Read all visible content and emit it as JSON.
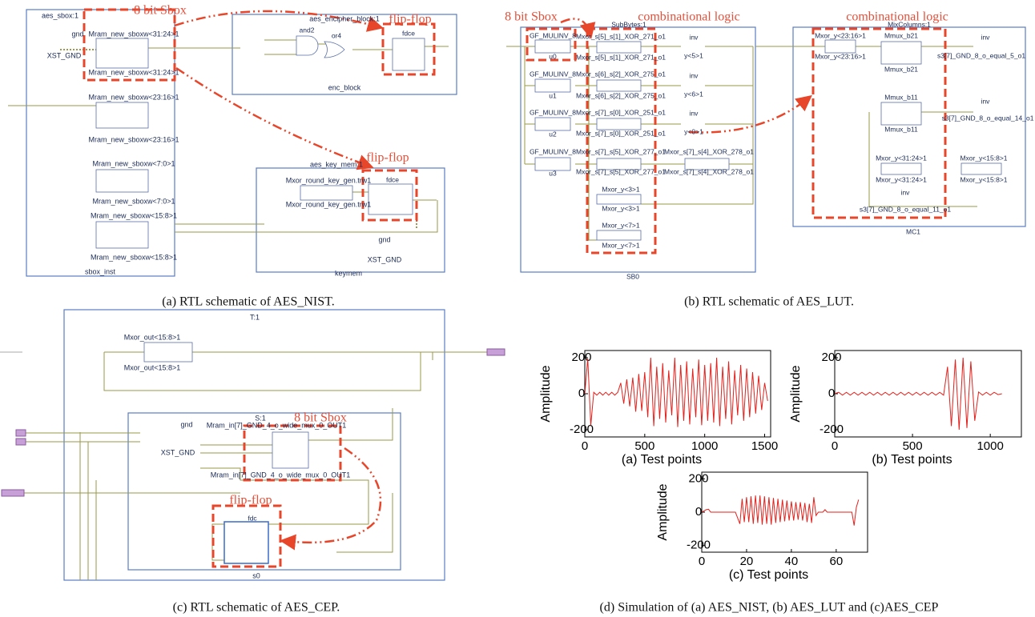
{
  "schematic_a": {
    "texts": [
      "aes_sbox:1",
      "8 bit Sbox",
      "gnd",
      "XST_GND",
      "Mram_new_sboxw<31:24>1",
      "Mram_new_sboxw<31:24>1",
      "Mram_new_sboxw<23:16>1",
      "Mram_new_sboxw<23:16>1",
      "Mram_new_sboxw<7:0>1",
      "Mram_new_sboxw<7:0>1",
      "Mram_new_sboxw<15:8>1",
      "Mram_new_sboxw<15:8>1",
      "sbox_inst",
      "aes_encipher_block:1",
      "and2",
      "or4",
      "flip-flop",
      "fdce",
      "enc_block",
      "aes_key_mem:1",
      "Mxor_round_key_gen.trw1",
      "Mxor_round_key_gen.trw1",
      "flip-flop",
      "fdce",
      "gnd",
      "XST_GND",
      "keymem"
    ],
    "caption": "(a) RTL schematic of AES_NIST."
  },
  "schematic_b": {
    "texts": [
      "8 bit Sbox",
      "combinational logic",
      "combinational logic",
      "SubBytes:1",
      "MixColumns:1",
      "GF_MULINV_8",
      "u0",
      "GF_MULINV_8",
      "u1",
      "GF_MULINV_8",
      "u2",
      "GF_MULINV_8",
      "u3",
      "Mxor_s[5]_s[1]_XOR_271_o1",
      "Mxor_s[5]_s[1]_XOR_271_o1",
      "Mxor_s[6]_s[2]_XOR_275_o1",
      "Mxor_s[6]_s[2]_XOR_275_o1",
      "Mxor_s[7]_s[0]_XOR_251_o1",
      "Mxor_s[7]_s[0]_XOR_251_o1",
      "Mxor_s[7]_s[5]_XOR_277_o1",
      "Mxor_s[7]_s[5]_XOR_277_o1",
      "Mxor_s[7]_s[4]_XOR_278_o1",
      "Mxor_s[7]_s[4]_XOR_278_o1",
      "Mxor_y<3>1",
      "Mxor_y<3>1",
      "Mxor_y<7>1",
      "Mxor_y<7>1",
      "inv",
      "y<5>1",
      "inv",
      "y<6>1",
      "inv",
      "y<0>1",
      "SB0",
      "Mxor_y<23:16>1",
      "Mxor_y<23:16>1",
      "Mmux_b21",
      "Mmux_b21",
      "inv",
      "s3[7]_GND_8_o_equal_5_o1",
      "Mmux_b11",
      "Mmux_b11",
      "inv",
      "s3[7]_GND_8_o_equal_14_o1",
      "Mxor_y<31:24>1",
      "Mxor_y<31:24>1",
      "Mxor_y<15:8>1",
      "Mxor_y<15:8>1",
      "inv",
      "s3[7]_GND_8_o_equal_11_o1",
      "MC1"
    ],
    "caption": "(b) RTL schematic of AES_LUT."
  },
  "schematic_c": {
    "texts": [
      "T:1",
      "Mxor_out<15:8>1",
      "Mxor_out<15:8>1",
      "S:1",
      "8 bit Sbox",
      "gnd",
      "XST_GND",
      "Mram_in[7]_GND_4_o_wide_mux_0_OUT1",
      "Mram_in[7]_GND_4_o_wide_mux_0_OUT1",
      "flip-flop",
      "fdc",
      "s0"
    ],
    "caption": "(c) RTL schematic of AES_CEP."
  },
  "panel_d_caption": "(d) Simulation of (a) AES_NIST, (b) AES_LUT and (c)AES_CEP",
  "chart_data": [
    {
      "type": "line",
      "xlabel": "(a)  Test points",
      "ylabel": "Amplitude",
      "color": "#e3201b",
      "x": [
        0,
        25,
        50,
        75,
        100,
        125,
        150,
        175,
        200,
        225,
        250,
        275,
        300,
        325,
        350,
        375,
        400,
        425,
        450,
        475,
        500,
        525,
        550,
        575,
        600,
        625,
        650,
        675,
        700,
        725,
        750,
        775,
        800,
        825,
        850,
        875,
        900,
        925,
        950,
        975,
        1000,
        1025,
        1050,
        1075,
        1100,
        1125,
        1150,
        1175,
        1200,
        1225,
        1250,
        1275,
        1300,
        1325,
        1350,
        1375,
        1400,
        1425,
        1450,
        1475,
        1500,
        1525
      ],
      "values": [
        0,
        195,
        -175,
        8,
        -8,
        8,
        -8,
        8,
        -8,
        8,
        -8,
        8,
        60,
        -55,
        80,
        -70,
        90,
        -100,
        110,
        -95,
        120,
        -130,
        200,
        -180,
        150,
        -140,
        170,
        -160,
        130,
        -120,
        200,
        -185,
        160,
        -150,
        180,
        -170,
        140,
        -130,
        190,
        -175,
        160,
        -150,
        170,
        -160,
        200,
        -180,
        150,
        -140,
        180,
        -170,
        130,
        -120,
        160,
        -150,
        140,
        -130,
        120,
        -110,
        100,
        -90,
        60,
        -40
      ],
      "xlim": [
        0,
        1550
      ],
      "ylim": [
        -240,
        240
      ],
      "xticks": [
        0,
        500,
        1000,
        1500
      ],
      "yticks": [
        -200,
        0,
        200
      ]
    },
    {
      "type": "line",
      "xlabel": "(b)  Test points",
      "ylabel": "Amplitude",
      "color": "#e3201b",
      "x": [
        0,
        25,
        50,
        75,
        100,
        125,
        150,
        175,
        200,
        225,
        250,
        275,
        300,
        325,
        350,
        375,
        400,
        425,
        450,
        475,
        500,
        525,
        550,
        575,
        600,
        625,
        650,
        675,
        700,
        725,
        750,
        775,
        800,
        825,
        850,
        875,
        900,
        925,
        950,
        975,
        1000,
        1025,
        1050,
        1075
      ],
      "values": [
        0,
        8,
        -8,
        8,
        -8,
        8,
        -8,
        8,
        -8,
        8,
        -8,
        8,
        -8,
        8,
        -8,
        8,
        -8,
        8,
        -8,
        8,
        -8,
        8,
        -8,
        8,
        -8,
        8,
        -8,
        8,
        -8,
        150,
        -180,
        190,
        -200,
        200,
        -190,
        180,
        -150,
        10,
        -8,
        8,
        -8,
        8,
        -5,
        0
      ],
      "xlim": [
        0,
        1200
      ],
      "ylim": [
        -240,
        240
      ],
      "xticks": [
        0,
        500,
        1000
      ],
      "yticks": [
        -200,
        0,
        200
      ]
    },
    {
      "type": "line",
      "xlabel": "(c)  Test points",
      "ylabel": "Amplitude",
      "color": "#e3201b",
      "x": [
        0,
        2,
        3,
        4,
        15,
        17,
        18,
        19,
        20,
        21,
        22,
        23,
        24,
        25,
        26,
        27,
        28,
        29,
        30,
        31,
        32,
        33,
        34,
        35,
        36,
        37,
        38,
        39,
        40,
        41,
        42,
        43,
        44,
        45,
        46,
        47,
        48,
        49,
        50,
        51,
        52,
        54,
        55,
        56,
        67,
        68,
        69,
        70
      ],
      "values": [
        0,
        15,
        18,
        0,
        0,
        -70,
        80,
        -60,
        90,
        -60,
        95,
        -70,
        100,
        -65,
        100,
        -75,
        95,
        -70,
        90,
        -75,
        85,
        -65,
        80,
        -60,
        75,
        -55,
        70,
        -50,
        65,
        -50,
        60,
        -45,
        60,
        -50,
        55,
        -60,
        50,
        -65,
        90,
        -20,
        0,
        0,
        15,
        0,
        0,
        -80,
        30,
        75
      ],
      "xlim": [
        0,
        74
      ],
      "ylim": [
        -240,
        240
      ],
      "xticks": [
        0,
        20,
        40,
        60
      ],
      "yticks": [
        -200,
        0,
        200
      ]
    }
  ]
}
